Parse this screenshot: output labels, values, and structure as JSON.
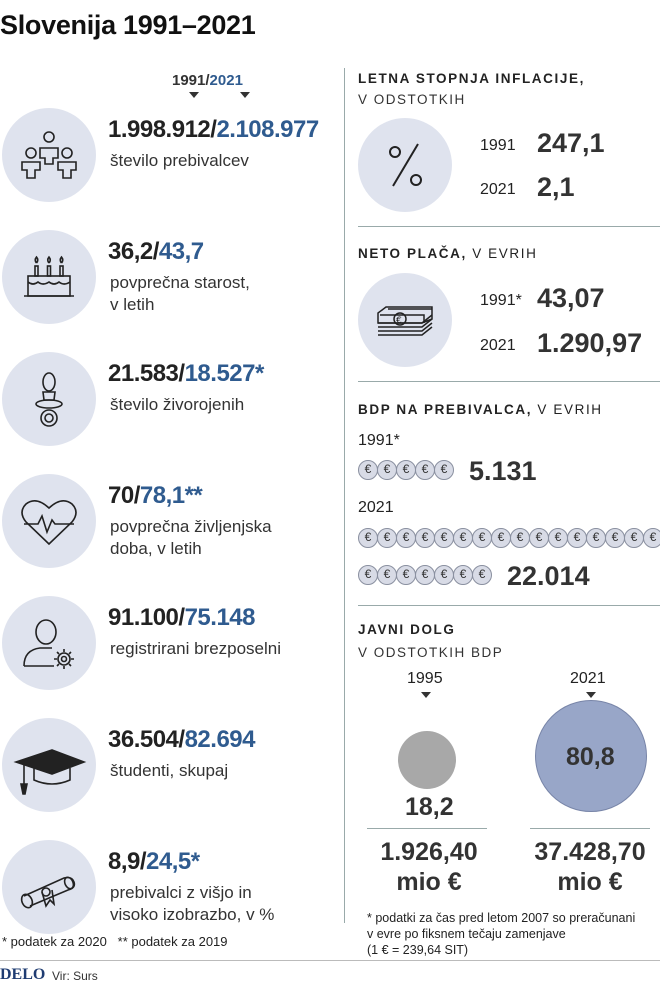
{
  "title": "Slovenija 1991–2021",
  "year_header": {
    "y1": "1991/",
    "y2": "2021"
  },
  "stats": [
    {
      "icon": "population-icon",
      "v1": "1.998.912/",
      "v2": "2.108.977",
      "label": "število prebivalcev"
    },
    {
      "icon": "birthday-cake-icon",
      "v1": "36,2/",
      "v2": "43,7",
      "label": "povprečna starost,\nv letih"
    },
    {
      "icon": "pacifier-icon",
      "v1": "21.583/",
      "v2": "18.527*",
      "label": "število živorojenih"
    },
    {
      "icon": "heart-pulse-icon",
      "v1": "70/",
      "v2": "78,1**",
      "label": "povprečna življenjska\ndoba, v letih"
    },
    {
      "icon": "unemployed-person-icon",
      "v1": "91.100/",
      "v2": "75.148",
      "label": "registrirani brezposelni"
    },
    {
      "icon": "graduation-cap-icon",
      "v1": "36.504/",
      "v2": "82.694",
      "label": "študenti, skupaj"
    },
    {
      "icon": "diploma-icon",
      "v1": "8,9/",
      "v2": "24,5*",
      "label": "prebivalci z višjo in\nvisoko izobrazbo, v %"
    }
  ],
  "footnote_left": "* podatek za 2020   ** podatek za 2019",
  "brand": "DELO",
  "source": "Vir: Surs",
  "inflation": {
    "title": "LETNA STOPNJA INFLACIJE,",
    "subtitle": "V ODSTOTKIH",
    "icon": "percent-icon",
    "y1": "1991",
    "v1": "247,1",
    "y2": "2021",
    "v2": "2,1"
  },
  "salary": {
    "title_bold": "NETO PLAČA,",
    "title_rest": " V EVRIH",
    "icon": "money-stack-icon",
    "y1": "1991*",
    "v1": "43,07",
    "y2": "2021",
    "v2": "1.290,97"
  },
  "gdp": {
    "title_bold": "BDP",
    "title_mid": " NA PREBIVALCA,",
    "title_rest": " V EVRIH",
    "y1": "1991*",
    "v1": "5.131",
    "coins1": 5,
    "y2": "2021",
    "v2": "22.014",
    "coins2_row1": 16,
    "coins2_row2": 7,
    "coin_symbol": "€"
  },
  "debt": {
    "title": "JAVNI DOLG",
    "subtitle": "V ODSTOTKIH BDP",
    "y1": "1995",
    "pct1": "18,2",
    "amt1": "1.926,40",
    "unit1": "mio €",
    "y2": "2021",
    "pct2": "80,8",
    "amt2": "37.428,70",
    "unit2": "mio €",
    "note": "* podatki za čas pred letom 2007 so preračunani\nv evre po fiksnem tečaju zamenjave\n(1 € = 239,64 SIT)",
    "colors": {
      "c1995": "#a8a8a8",
      "c2021": "#98a6c8"
    }
  }
}
